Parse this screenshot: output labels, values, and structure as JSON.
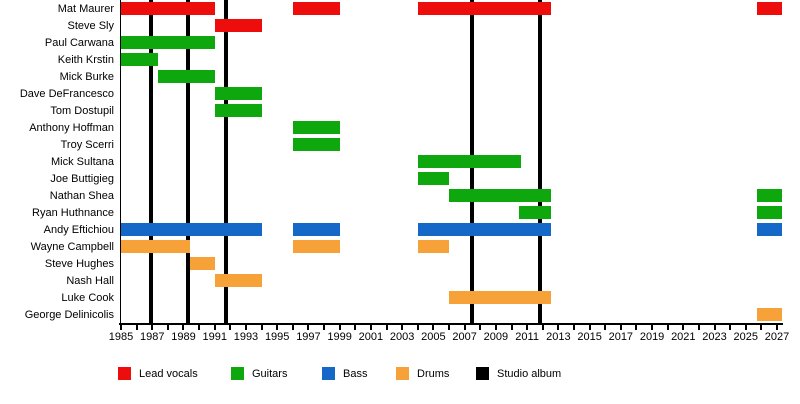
{
  "chart_data": {
    "type": "bar",
    "subtype": "gantt-member-timeline",
    "title": "",
    "x_axis": {
      "unit": "year",
      "min": 1985,
      "max": 2027.3,
      "tick_interval": 1,
      "labels": [
        1985,
        1987,
        1989,
        1991,
        1993,
        1995,
        1997,
        1999,
        2001,
        2003,
        2005,
        2007,
        2009,
        2011,
        2013,
        2015,
        2017,
        2019,
        2021,
        2023,
        2025,
        2027
      ]
    },
    "members": [
      {
        "name": "Mat Maurer",
        "role": "Lead vocals",
        "periods": [
          [
            1985,
            1991
          ],
          [
            1996,
            1999
          ],
          [
            2004,
            2012.5
          ],
          [
            2025.7,
            2027.3
          ]
        ]
      },
      {
        "name": "Steve Sly",
        "role": "Lead vocals",
        "periods": [
          [
            1991,
            1994
          ]
        ]
      },
      {
        "name": "Paul Carwana",
        "role": "Guitars",
        "periods": [
          [
            1985,
            1991
          ]
        ]
      },
      {
        "name": "Keith Krstin",
        "role": "Guitars",
        "periods": [
          [
            1985,
            1987.4
          ]
        ]
      },
      {
        "name": "Mick Burke",
        "role": "Guitars",
        "periods": [
          [
            1987.4,
            1991
          ]
        ]
      },
      {
        "name": "Dave DeFrancesco",
        "role": "Guitars",
        "periods": [
          [
            1991,
            1994
          ]
        ]
      },
      {
        "name": "Tom Dostupil",
        "role": "Guitars",
        "periods": [
          [
            1991,
            1994
          ]
        ]
      },
      {
        "name": "Anthony Hoffman",
        "role": "Guitars",
        "periods": [
          [
            1996,
            1999
          ]
        ]
      },
      {
        "name": "Troy Scerri",
        "role": "Guitars",
        "periods": [
          [
            1996,
            1999
          ]
        ]
      },
      {
        "name": "Mick Sultana",
        "role": "Guitars",
        "periods": [
          [
            2004,
            2010.6
          ]
        ]
      },
      {
        "name": "Joe Buttigieg",
        "role": "Guitars",
        "periods": [
          [
            2004,
            2006
          ]
        ]
      },
      {
        "name": "Nathan Shea",
        "role": "Guitars",
        "periods": [
          [
            2006,
            2012.5
          ],
          [
            2025.7,
            2027.3
          ]
        ]
      },
      {
        "name": "Ryan Huthnance",
        "role": "Guitars",
        "periods": [
          [
            2010.5,
            2012.5
          ],
          [
            2025.7,
            2027.3
          ]
        ]
      },
      {
        "name": "Andy Eftichiou",
        "role": "Bass",
        "periods": [
          [
            1985,
            1994
          ],
          [
            1996,
            1999
          ],
          [
            2004,
            2012.5
          ],
          [
            2025.7,
            2027.3
          ]
        ]
      },
      {
        "name": "Wayne Campbell",
        "role": "Drums",
        "periods": [
          [
            1985,
            1989.4
          ],
          [
            1996,
            1999
          ],
          [
            2004,
            2006
          ]
        ]
      },
      {
        "name": "Steve Hughes",
        "role": "Drums",
        "periods": [
          [
            1989.4,
            1991
          ]
        ]
      },
      {
        "name": "Nash Hall",
        "role": "Drums",
        "periods": [
          [
            1991,
            1994
          ]
        ]
      },
      {
        "name": "Luke Cook",
        "role": "Drums",
        "periods": [
          [
            2006,
            2012.5
          ]
        ]
      },
      {
        "name": "George Delinicolis",
        "role": "Drums",
        "periods": [
          [
            2025.7,
            2027.3
          ]
        ]
      }
    ],
    "albums": {
      "label": "Studio album",
      "years": [
        1986.9,
        1989.3,
        1991.7,
        2007.5,
        2011.8
      ]
    },
    "legend": [
      {
        "label": "Lead vocals",
        "color": "#ee0d0d"
      },
      {
        "label": "Guitars",
        "color": "#0ea80e"
      },
      {
        "label": "Bass",
        "color": "#1568c8"
      },
      {
        "label": "Drums",
        "color": "#f7a238"
      },
      {
        "label": "Studio album",
        "color": "#000000"
      }
    ],
    "layout_hints": {
      "grid": false,
      "legend_position": "bottom"
    }
  }
}
